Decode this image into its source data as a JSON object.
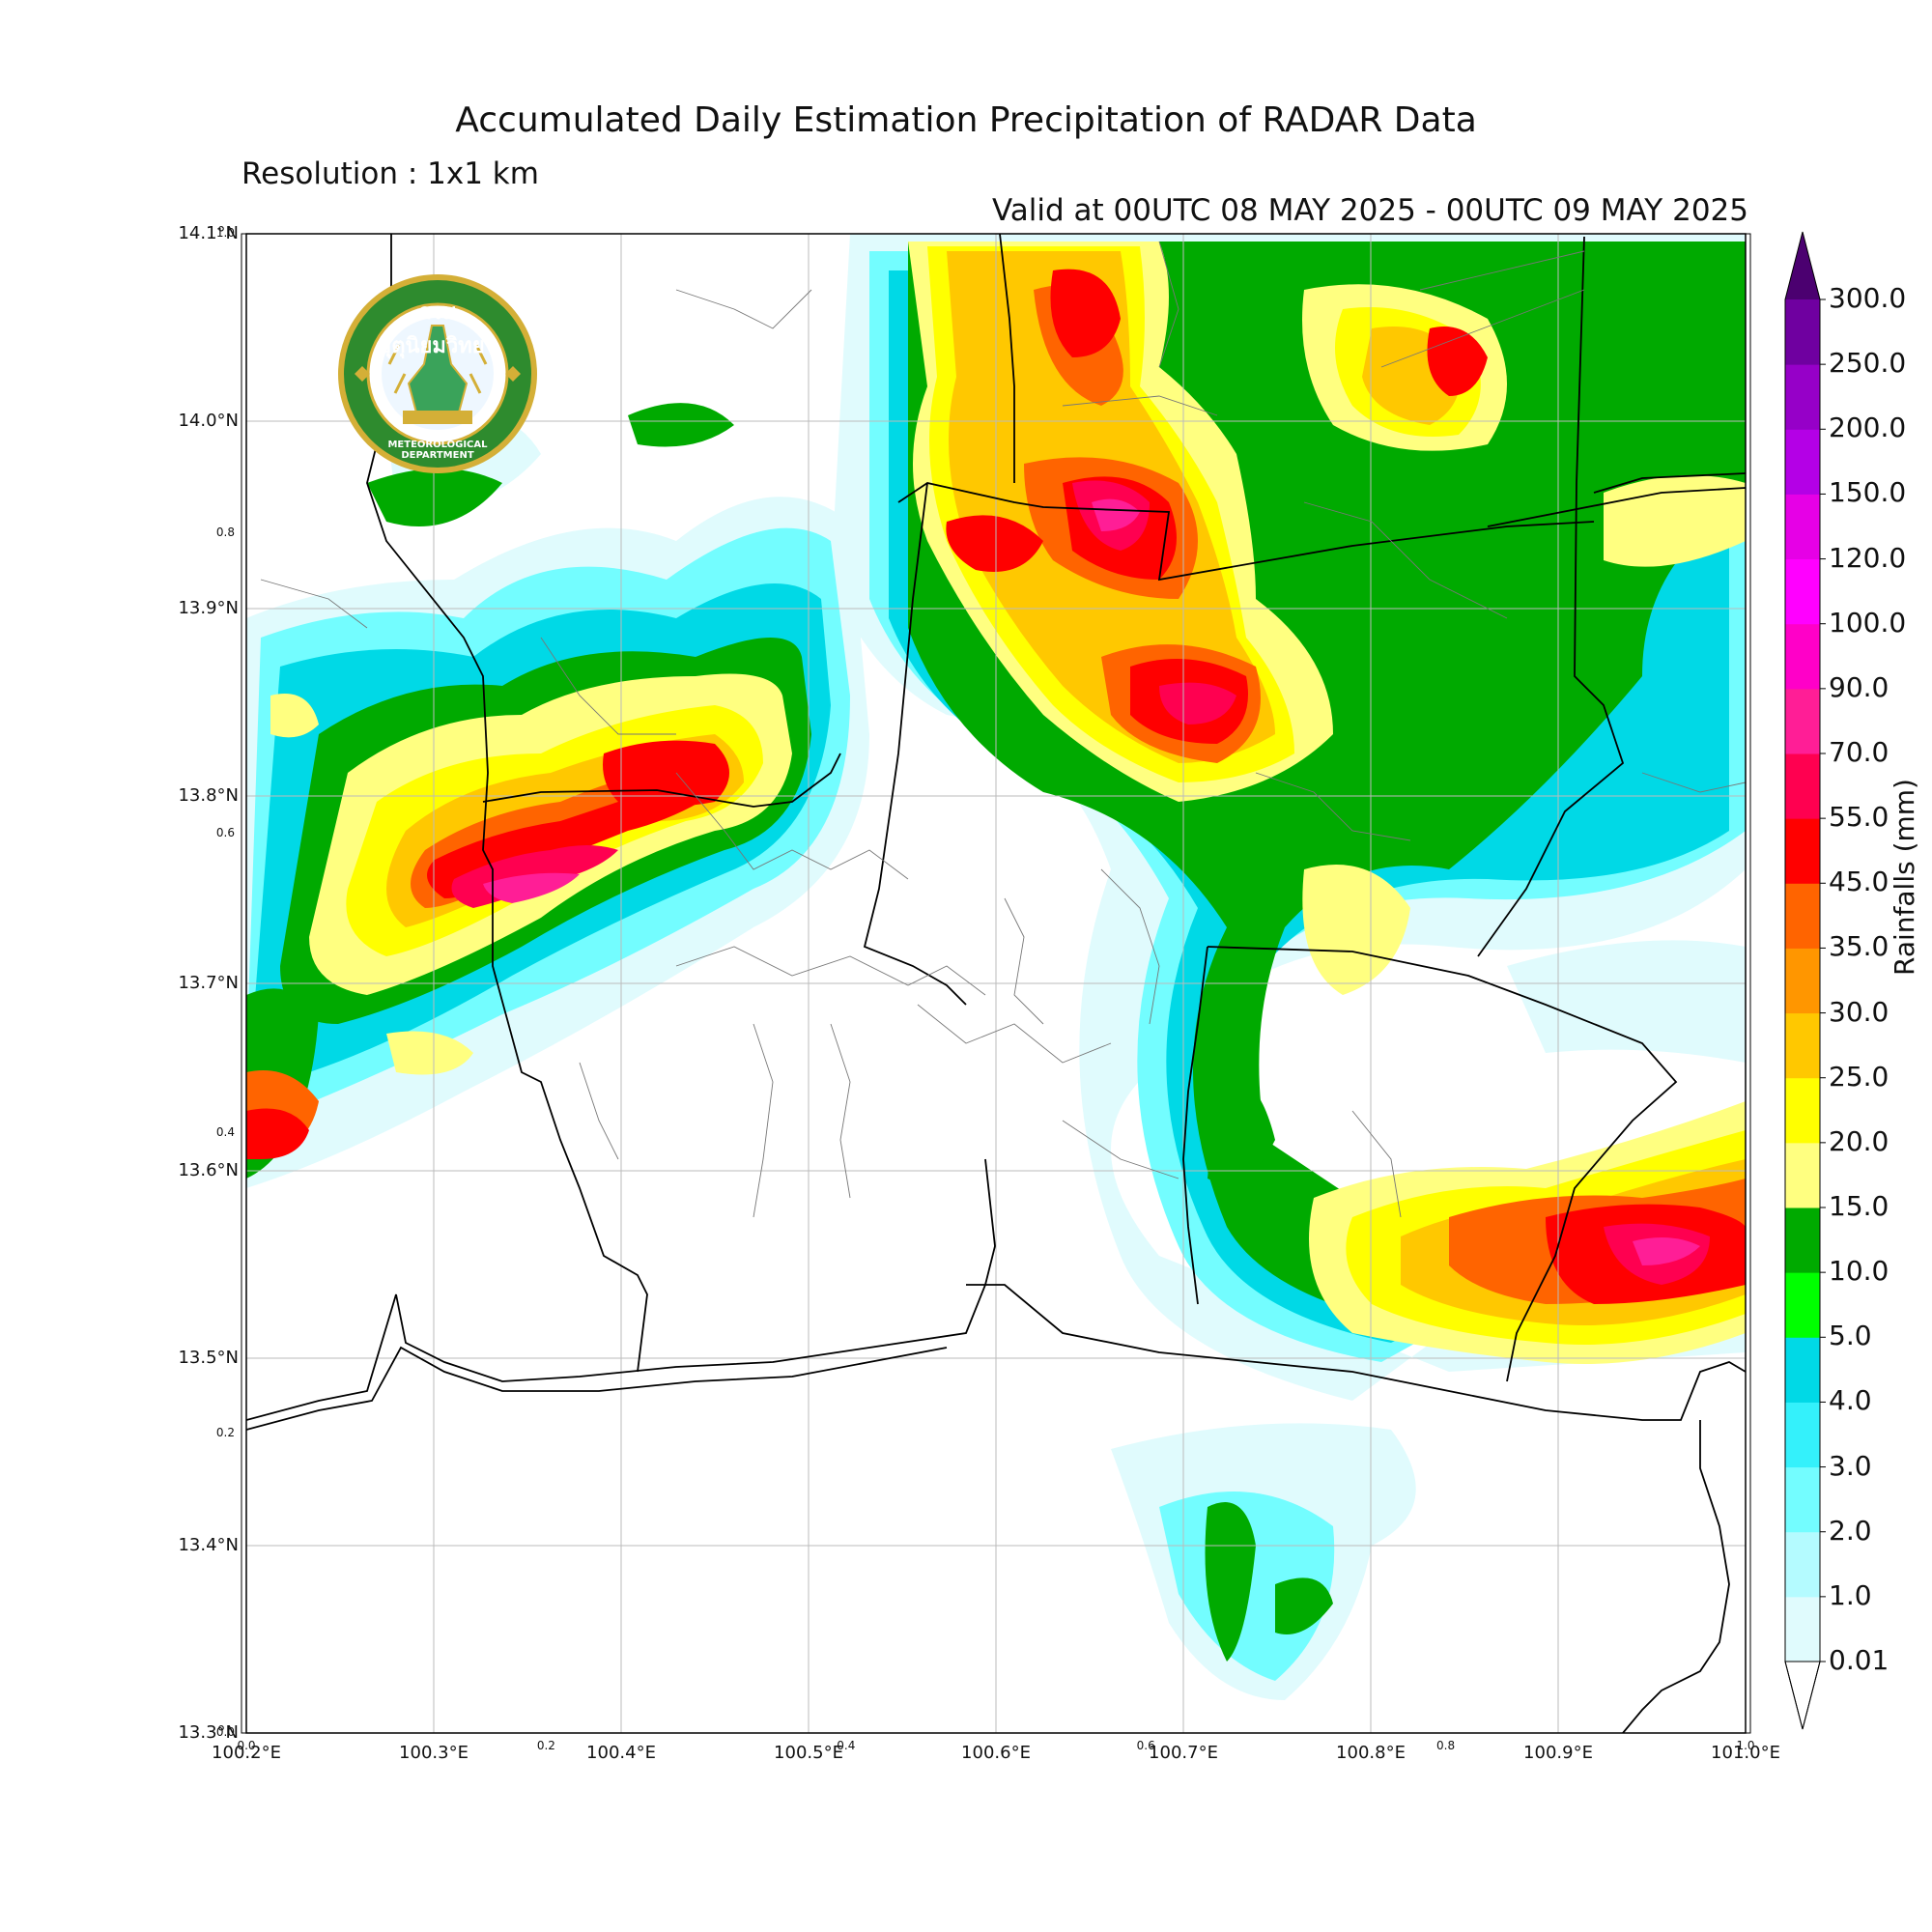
{
  "title": "Accumulated Daily Estimation Precipitation of RADAR Data",
  "resolution": "Resolution : 1x1 km",
  "valid": "Valid at 00UTC 08 MAY 2025 - 00UTC 09 MAY 2025",
  "colorbar": {
    "title": "Rainfalls (mm)",
    "levels": [
      "0.01",
      "1.0",
      "2.0",
      "3.0",
      "4.0",
      "5.0",
      "10.0",
      "15.0",
      "20.0",
      "25.0",
      "30.0",
      "35.0",
      "45.0",
      "55.0",
      "70.0",
      "90.0",
      "100.0",
      "120.0",
      "150.0",
      "200.0",
      "250.0",
      "300.0"
    ],
    "colors": [
      "#e0fbfd",
      "#b4fbff",
      "#73fdff",
      "#34f1fb",
      "#00d9e6",
      "#00ff00",
      "#00aa00",
      "#ffff80",
      "#ffff00",
      "#ffc800",
      "#ff9600",
      "#ff6400",
      "#ff0000",
      "#ff0050",
      "#ff1e96",
      "#ff00c8",
      "#ff00ff",
      "#e600e6",
      "#b400e6",
      "#9600c8",
      "#6f00a0"
    ]
  },
  "axes": {
    "lat_ticks": [
      "14.1°N",
      "14.0°N",
      "13.9°N",
      "13.8°N",
      "13.7°N",
      "13.6°N",
      "13.5°N",
      "13.4°N",
      "13.3°N"
    ],
    "lon_ticks": [
      "100.2°E",
      "100.3°E",
      "100.4°E",
      "100.5°E",
      "100.6°E",
      "100.7°E",
      "100.8°E",
      "100.9°E",
      "101.0°E"
    ],
    "inner_ticks_y": [
      "1.0",
      "0.8",
      "0.6",
      "0.4",
      "0.2",
      "0.0"
    ],
    "inner_ticks_x": [
      "0.0",
      "0.2",
      "0.4",
      "0.6",
      "0.8",
      "1.0"
    ]
  },
  "logo": {
    "thai_text": "กรมอุตุนิยมวิทยา",
    "english_text": "METEOROLOGICAL DEPARTMENT"
  }
}
